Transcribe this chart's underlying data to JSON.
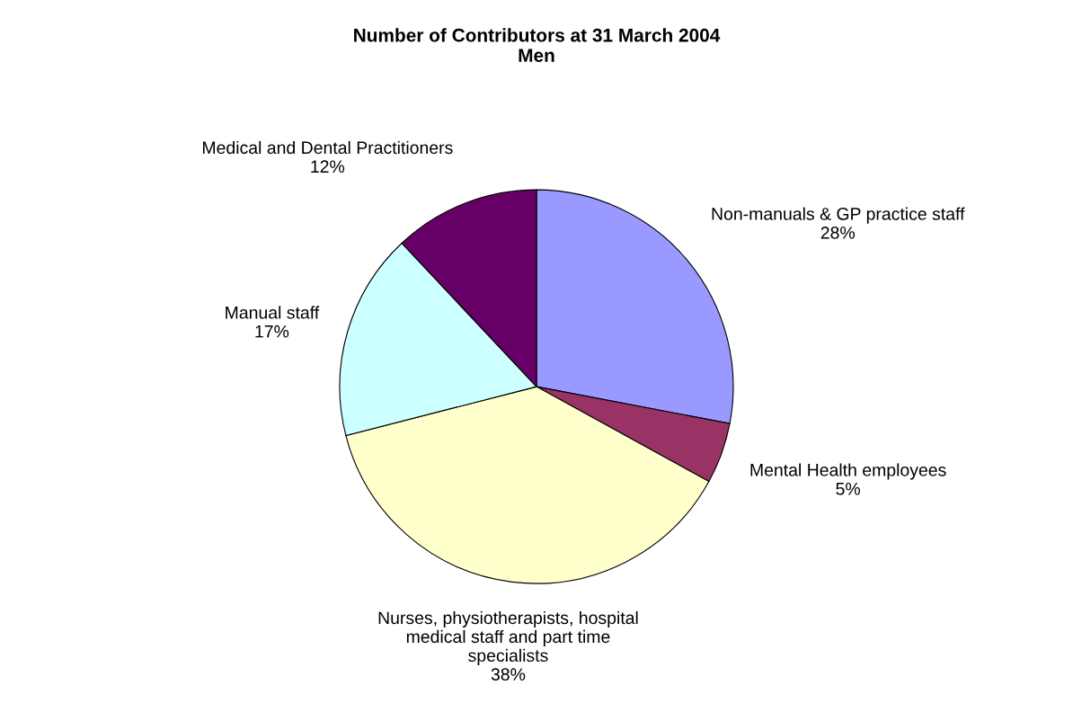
{
  "chart_data": {
    "type": "pie",
    "title": "Number of Contributors at 31 March 2004\nMen",
    "categories": [
      "Non-manuals & GP practice staff",
      "Mental Health employees",
      "Nurses, physiotherapists, hospital medical staff and part time specialists",
      "Manual staff",
      "Medical and Dental Practitioners"
    ],
    "values": [
      28,
      5,
      38,
      17,
      12
    ],
    "colors": [
      "#9999ff",
      "#993366",
      "#ffffcc",
      "#ccffff",
      "#660066"
    ],
    "value_labels": [
      "28%",
      "5%",
      "38%",
      "17%",
      "12%"
    ]
  }
}
